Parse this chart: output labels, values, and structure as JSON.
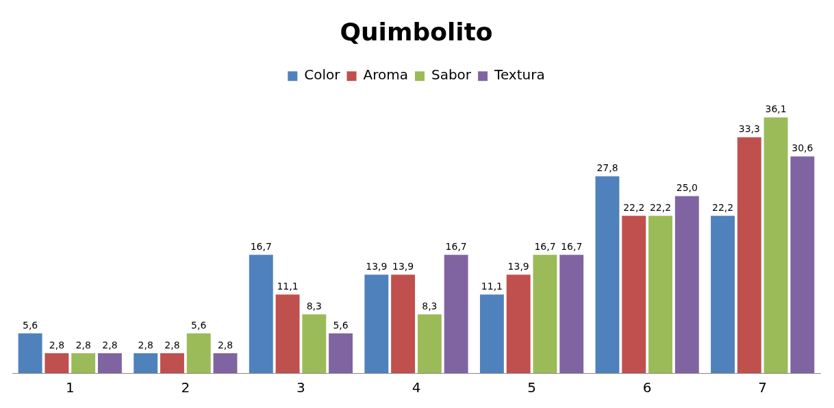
{
  "chart_data": {
    "type": "bar",
    "title": "Quimbolito",
    "categories": [
      "1",
      "2",
      "3",
      "4",
      "5",
      "6",
      "7"
    ],
    "legend": "top",
    "grid": false,
    "series": [
      {
        "name": "Color",
        "color": "#4f81bd",
        "values": [
          5.6,
          2.8,
          16.7,
          13.9,
          11.1,
          27.8,
          22.2
        ],
        "value_labels": [
          "5,6",
          "2,8",
          "16,7",
          "13,9",
          "11,1",
          "27,8",
          "22,2"
        ]
      },
      {
        "name": "Aroma",
        "color": "#c0504d",
        "values": [
          2.8,
          2.8,
          11.1,
          13.9,
          13.9,
          22.2,
          33.3
        ],
        "value_labels": [
          "2,8",
          "2,8",
          "11,1",
          "13,9",
          "13,9",
          "22,2",
          "33,3"
        ]
      },
      {
        "name": "Sabor",
        "color": "#9bbb59",
        "values": [
          2.8,
          5.6,
          8.3,
          8.3,
          16.7,
          22.2,
          36.1
        ],
        "value_labels": [
          "2,8",
          "5,6",
          "8,3",
          "8,3",
          "16,7",
          "22,2",
          "36,1"
        ]
      },
      {
        "name": "Textura",
        "color": "#8064a2",
        "values": [
          2.8,
          2.8,
          5.6,
          16.7,
          16.7,
          25.0,
          30.6
        ],
        "value_labels": [
          "2,8",
          "2,8",
          "5,6",
          "16,7",
          "16,7",
          "25,0",
          "30,6"
        ]
      }
    ]
  }
}
